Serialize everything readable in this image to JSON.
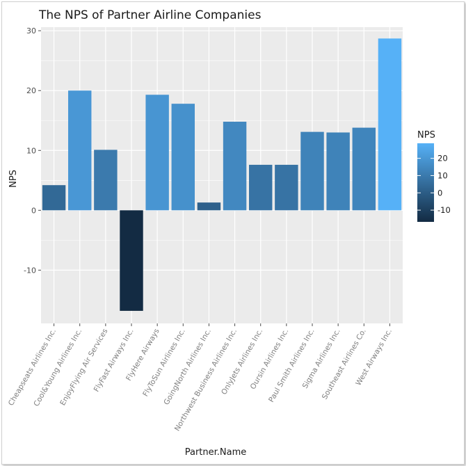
{
  "chart_data": {
    "type": "bar",
    "title": "The NPS of Partner Airline Companies",
    "xlabel": "Partner.Name",
    "ylabel": "NPS",
    "categories": [
      "Cheapseats Airlines Inc.",
      "Cool&Young Airlines Inc.",
      "EnjoyFlying Air Services",
      "FlyFast Airways Inc.",
      "FlyHere Airways",
      "FlyToSun Airlines Inc.",
      "GoingNorth Airlines Inc.",
      "Northwest Business Airlines Inc.",
      "OnlyJets Airlines Inc.",
      "Oursin Airlines Inc.",
      "Paul Smith Airlines Inc.",
      "Sigma Airlines Inc.",
      "Southeast Airlines Co.",
      "West Airways Inc."
    ],
    "values": [
      4.2,
      20.0,
      10.1,
      -16.8,
      19.3,
      17.8,
      1.3,
      14.8,
      7.6,
      7.6,
      13.1,
      13.0,
      13.8,
      28.7
    ],
    "ylim": [
      -18.9,
      30.6
    ],
    "yticks": [
      -10,
      0,
      10,
      20,
      30
    ],
    "grid": true,
    "legend": {
      "title": "NPS",
      "placement": "right",
      "ticks": [
        -10,
        0,
        10,
        20
      ],
      "low_color": "#132b43",
      "high_color": "#56b1f7"
    },
    "panel_background": "#ebebeb"
  }
}
